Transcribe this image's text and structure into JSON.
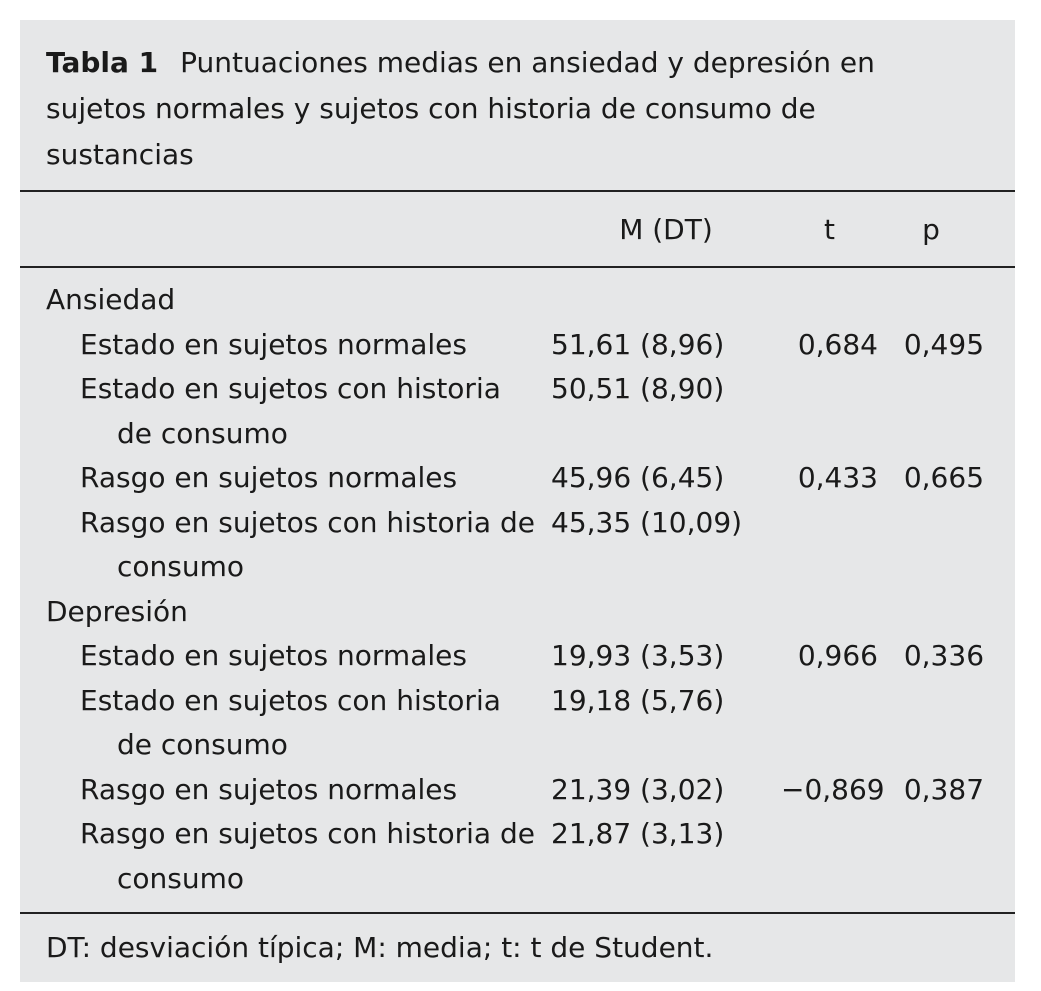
{
  "caption": {
    "label": "Tabla 1",
    "text": "Puntuaciones medias en ansiedad y depresión en sujetos normales y sujetos con historia de consumo de sustancias"
  },
  "header": {
    "columns": [
      "M (DT)",
      "t",
      "p"
    ]
  },
  "groups": [
    {
      "label": "Ansiedad",
      "rows": [
        {
          "label": "Estado en sujetos normales",
          "m_dt": "51,61 (8,96)",
          "t": "0,684",
          "p": "0,495"
        },
        {
          "label": "Estado en sujetos con historia de consumo",
          "m_dt": "50,51 (8,90)"
        },
        {
          "label": "Rasgo en sujetos normales",
          "m_dt": "45,96 (6,45)",
          "t": "0,433",
          "p": "0,665"
        },
        {
          "label": "Rasgo en sujetos con historia de consumo",
          "m_dt": "45,35 (10,09)"
        }
      ]
    },
    {
      "label": "Depresión",
      "rows": [
        {
          "label": "Estado en sujetos normales",
          "m_dt": "19,93 (3,53)",
          "t": "0,966",
          "p": "0,336"
        },
        {
          "label": "Estado en sujetos con historia de consumo",
          "m_dt": "19,18 (5,76)"
        },
        {
          "label": "Rasgo en sujetos normales",
          "m_dt": "21,39 (3,02)",
          "t": "−0,869",
          "p": "0,387"
        },
        {
          "label": "Rasgo en sujetos con historia de consumo",
          "m_dt": "21,87 (3,13)"
        }
      ]
    }
  ],
  "footnote": "DT: desviación típica; M: media; t: t de Student."
}
